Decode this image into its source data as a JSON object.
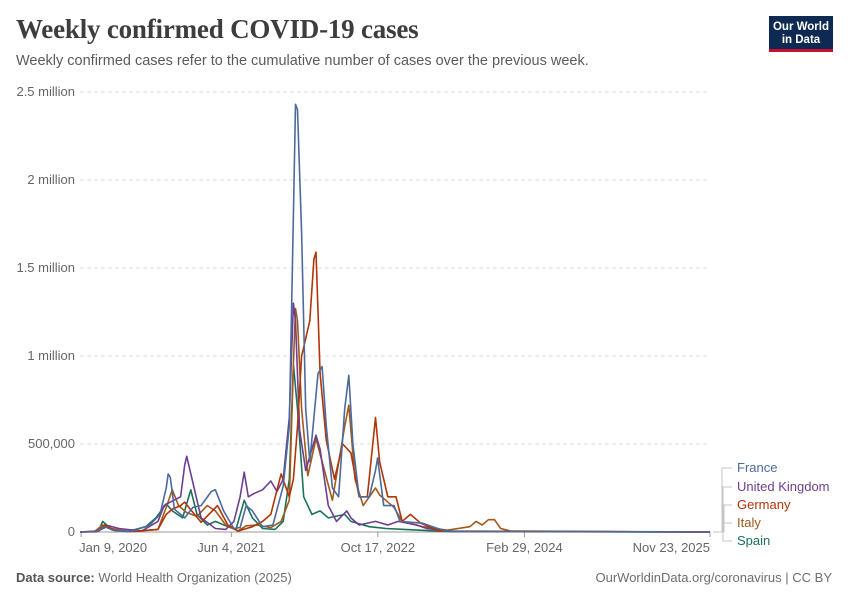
{
  "header": {
    "title": "Weekly confirmed COVID-19 cases",
    "subtitle": "Weekly confirmed cases refer to the cumulative number of cases over the previous week.",
    "logo_line1": "Our World",
    "logo_line2": "in Data"
  },
  "footer": {
    "source_label": "Data source:",
    "source_text": "World Health Organization (2025)",
    "link_text": "OurWorldinData.org/coronavirus | CC BY"
  },
  "chart_data": {
    "type": "line",
    "title": "Weekly confirmed COVID-19 cases",
    "xlabel": "",
    "ylabel": "",
    "xlim": [
      "2020-01-05",
      "2025-11-23"
    ],
    "ylim": [
      0,
      2500000
    ],
    "y_ticks": [
      0,
      500000,
      1000000,
      1500000,
      2000000,
      2500000
    ],
    "y_tick_labels": [
      "0",
      "500,000",
      "1 million",
      "1.5 million",
      "2 million",
      "2.5 million"
    ],
    "x_ticks": [
      "2020-01-09",
      "2021-06-04",
      "2022-10-17",
      "2024-02-29",
      "2025-11-23"
    ],
    "x_tick_labels": [
      "Jan 9, 2020",
      "Jun 4, 2021",
      "Oct 17, 2022",
      "Feb 29, 2024",
      "Nov 23, 2025"
    ],
    "grid": "horizontal dashed",
    "legend_position": "right",
    "series": [
      {
        "name": "France",
        "color": "#4c6a9c",
        "points": [
          [
            "2020-01-05",
            0
          ],
          [
            "2020-03-01",
            2000
          ],
          [
            "2020-03-29",
            30000
          ],
          [
            "2020-04-26",
            10000
          ],
          [
            "2020-06-28",
            3000
          ],
          [
            "2020-08-30",
            40000
          ],
          [
            "2020-10-04",
            100000
          ],
          [
            "2020-10-25",
            250000
          ],
          [
            "2020-11-01",
            330000
          ],
          [
            "2020-11-08",
            310000
          ],
          [
            "2020-11-22",
            130000
          ],
          [
            "2020-12-27",
            80000
          ],
          [
            "2021-01-24",
            140000
          ],
          [
            "2021-02-21",
            150000
          ],
          [
            "2021-03-28",
            230000
          ],
          [
            "2021-04-11",
            240000
          ],
          [
            "2021-05-09",
            120000
          ],
          [
            "2021-06-13",
            20000
          ],
          [
            "2021-07-04",
            25000
          ],
          [
            "2021-07-25",
            150000
          ],
          [
            "2021-08-15",
            120000
          ],
          [
            "2021-09-19",
            30000
          ],
          [
            "2021-10-24",
            40000
          ],
          [
            "2021-11-28",
            260000
          ],
          [
            "2021-12-19",
            600000
          ],
          [
            "2022-01-02",
            1800000
          ],
          [
            "2022-01-09",
            2430000
          ],
          [
            "2022-01-16",
            2400000
          ],
          [
            "2022-01-30",
            1700000
          ],
          [
            "2022-02-13",
            700000
          ],
          [
            "2022-02-27",
            400000
          ],
          [
            "2022-03-27",
            900000
          ],
          [
            "2022-04-10",
            940000
          ],
          [
            "2022-04-24",
            600000
          ],
          [
            "2022-05-15",
            250000
          ],
          [
            "2022-06-05",
            200000
          ],
          [
            "2022-06-26",
            700000
          ],
          [
            "2022-07-10",
            890000
          ],
          [
            "2022-07-24",
            500000
          ],
          [
            "2022-08-14",
            200000
          ],
          [
            "2022-09-18",
            200000
          ],
          [
            "2022-10-09",
            350000
          ],
          [
            "2022-10-16",
            420000
          ],
          [
            "2022-11-06",
            150000
          ],
          [
            "2022-12-11",
            150000
          ],
          [
            "2023-01-01",
            60000
          ],
          [
            "2023-03-19",
            50000
          ],
          [
            "2023-06-04",
            5000
          ],
          [
            "2023-08-20",
            3000
          ],
          [
            "2025-11-23",
            0
          ]
        ]
      },
      {
        "name": "United Kingdom",
        "color": "#6d3e91",
        "points": [
          [
            "2020-01-05",
            0
          ],
          [
            "2020-03-01",
            1000
          ],
          [
            "2020-04-12",
            35000
          ],
          [
            "2020-05-17",
            20000
          ],
          [
            "2020-08-02",
            5000
          ],
          [
            "2020-09-27",
            60000
          ],
          [
            "2020-10-18",
            150000
          ],
          [
            "2020-11-08",
            170000
          ],
          [
            "2020-12-13",
            200000
          ],
          [
            "2020-12-27",
            380000
          ],
          [
            "2021-01-03",
            430000
          ],
          [
            "2021-01-24",
            280000
          ],
          [
            "2021-02-21",
            80000
          ],
          [
            "2021-04-11",
            20000
          ],
          [
            "2021-05-16",
            15000
          ],
          [
            "2021-06-13",
            60000
          ],
          [
            "2021-07-04",
            200000
          ],
          [
            "2021-07-18",
            340000
          ],
          [
            "2021-08-01",
            200000
          ],
          [
            "2021-08-22",
            220000
          ],
          [
            "2021-09-19",
            240000
          ],
          [
            "2021-10-17",
            290000
          ],
          [
            "2021-11-07",
            230000
          ],
          [
            "2021-11-28",
            300000
          ],
          [
            "2021-12-19",
            650000
          ],
          [
            "2022-01-02",
            1300000
          ],
          [
            "2022-01-09",
            1200000
          ],
          [
            "2022-01-23",
            580000
          ],
          [
            "2022-02-13",
            350000
          ],
          [
            "2022-03-20",
            550000
          ],
          [
            "2022-04-03",
            470000
          ],
          [
            "2022-05-01",
            150000
          ],
          [
            "2022-05-29",
            60000
          ],
          [
            "2022-07-03",
            120000
          ],
          [
            "2022-07-17",
            80000
          ],
          [
            "2022-08-14",
            40000
          ],
          [
            "2022-10-09",
            60000
          ],
          [
            "2022-11-20",
            40000
          ],
          [
            "2022-12-25",
            60000
          ],
          [
            "2023-02-26",
            40000
          ],
          [
            "2023-04-02",
            20000
          ],
          [
            "2023-06-25",
            3000
          ],
          [
            "2024-03-03",
            2000
          ],
          [
            "2025-11-23",
            0
          ]
        ]
      },
      {
        "name": "Germany",
        "color": "#b13507",
        "points": [
          [
            "2020-01-05",
            0
          ],
          [
            "2020-03-08",
            5000
          ],
          [
            "2020-03-29",
            40000
          ],
          [
            "2020-05-03",
            8000
          ],
          [
            "2020-07-05",
            3000
          ],
          [
            "2020-09-27",
            15000
          ],
          [
            "2020-10-25",
            100000
          ],
          [
            "2020-11-15",
            130000
          ],
          [
            "2020-12-13",
            150000
          ],
          [
            "2020-12-27",
            170000
          ],
          [
            "2021-01-10",
            140000
          ],
          [
            "2021-02-21",
            55000
          ],
          [
            "2021-04-18",
            150000
          ],
          [
            "2021-05-23",
            40000
          ],
          [
            "2021-06-27",
            5000
          ],
          [
            "2021-08-15",
            30000
          ],
          [
            "2021-09-19",
            60000
          ],
          [
            "2021-10-17",
            100000
          ],
          [
            "2021-11-21",
            330000
          ],
          [
            "2021-12-19",
            200000
          ],
          [
            "2022-01-02",
            300000
          ],
          [
            "2022-01-16",
            600000
          ],
          [
            "2022-01-30",
            1000000
          ],
          [
            "2022-02-06",
            1050000
          ],
          [
            "2022-02-27",
            1200000
          ],
          [
            "2022-03-13",
            1550000
          ],
          [
            "2022-03-20",
            1590000
          ],
          [
            "2022-04-03",
            900000
          ],
          [
            "2022-04-24",
            520000
          ],
          [
            "2022-05-22",
            300000
          ],
          [
            "2022-06-19",
            500000
          ],
          [
            "2022-07-17",
            450000
          ],
          [
            "2022-08-14",
            200000
          ],
          [
            "2022-09-11",
            200000
          ],
          [
            "2022-10-02",
            540000
          ],
          [
            "2022-10-09",
            650000
          ],
          [
            "2022-10-23",
            400000
          ],
          [
            "2022-11-20",
            200000
          ],
          [
            "2022-12-18",
            200000
          ],
          [
            "2023-01-08",
            60000
          ],
          [
            "2023-02-05",
            100000
          ],
          [
            "2023-03-12",
            50000
          ],
          [
            "2023-05-14",
            5000
          ],
          [
            "2025-11-23",
            0
          ]
        ]
      },
      {
        "name": "Italy",
        "color": "#a2591b",
        "points": [
          [
            "2020-01-05",
            0
          ],
          [
            "2020-02-23",
            2000
          ],
          [
            "2020-03-22",
            40000
          ],
          [
            "2020-04-19",
            20000
          ],
          [
            "2020-06-21",
            2000
          ],
          [
            "2020-09-27",
            15000
          ],
          [
            "2020-10-25",
            140000
          ],
          [
            "2020-11-15",
            240000
          ],
          [
            "2020-12-06",
            150000
          ],
          [
            "2021-01-03",
            110000
          ],
          [
            "2021-02-07",
            90000
          ],
          [
            "2021-03-14",
            150000
          ],
          [
            "2021-04-11",
            120000
          ],
          [
            "2021-05-16",
            40000
          ],
          [
            "2021-06-27",
            6000
          ],
          [
            "2021-07-25",
            35000
          ],
          [
            "2021-08-29",
            40000
          ],
          [
            "2021-10-17",
            25000
          ],
          [
            "2021-11-21",
            60000
          ],
          [
            "2021-12-19",
            180000
          ],
          [
            "2022-01-02",
            950000
          ],
          [
            "2022-01-09",
            1270000
          ],
          [
            "2022-01-16",
            1200000
          ],
          [
            "2022-01-30",
            700000
          ],
          [
            "2022-02-20",
            320000
          ],
          [
            "2022-03-20",
            530000
          ],
          [
            "2022-04-10",
            400000
          ],
          [
            "2022-05-15",
            180000
          ],
          [
            "2022-06-26",
            600000
          ],
          [
            "2022-07-10",
            720000
          ],
          [
            "2022-07-31",
            300000
          ],
          [
            "2022-08-28",
            150000
          ],
          [
            "2022-10-09",
            250000
          ],
          [
            "2022-10-23",
            210000
          ],
          [
            "2022-11-13",
            180000
          ],
          [
            "2022-12-11",
            140000
          ],
          [
            "2023-01-08",
            60000
          ],
          [
            "2023-03-19",
            30000
          ],
          [
            "2023-06-11",
            10000
          ],
          [
            "2023-08-27",
            30000
          ],
          [
            "2023-09-17",
            60000
          ],
          [
            "2023-10-08",
            40000
          ],
          [
            "2023-10-29",
            70000
          ],
          [
            "2023-11-19",
            70000
          ],
          [
            "2023-12-10",
            20000
          ],
          [
            "2024-01-14",
            5000
          ],
          [
            "2025-11-23",
            0
          ]
        ]
      },
      {
        "name": "Spain",
        "color": "#1a7359",
        "points": [
          [
            "2020-01-05",
            0
          ],
          [
            "2020-03-08",
            5000
          ],
          [
            "2020-03-22",
            60000
          ],
          [
            "2020-04-19",
            20000
          ],
          [
            "2020-06-14",
            2000
          ],
          [
            "2020-08-16",
            30000
          ],
          [
            "2020-09-20",
            80000
          ],
          [
            "2020-10-25",
            160000
          ],
          [
            "2020-11-15",
            120000
          ],
          [
            "2020-12-20",
            80000
          ],
          [
            "2021-01-17",
            240000
          ],
          [
            "2021-02-07",
            100000
          ],
          [
            "2021-03-14",
            40000
          ],
          [
            "2021-04-11",
            60000
          ],
          [
            "2021-05-23",
            30000
          ],
          [
            "2021-06-20",
            15000
          ],
          [
            "2021-07-18",
            180000
          ],
          [
            "2021-08-15",
            80000
          ],
          [
            "2021-09-19",
            20000
          ],
          [
            "2021-10-31",
            15000
          ],
          [
            "2021-11-28",
            60000
          ],
          [
            "2021-12-19",
            300000
          ],
          [
            "2022-01-02",
            950000
          ],
          [
            "2022-01-16",
            700000
          ],
          [
            "2022-02-06",
            200000
          ],
          [
            "2022-03-06",
            100000
          ],
          [
            "2022-04-03",
            120000
          ],
          [
            "2022-05-01",
            80000
          ],
          [
            "2022-06-26",
            100000
          ],
          [
            "2022-07-17",
            60000
          ],
          [
            "2022-09-18",
            30000
          ],
          [
            "2022-11-13",
            20000
          ],
          [
            "2023-01-15",
            15000
          ],
          [
            "2023-06-18",
            2000
          ],
          [
            "2025-11-23",
            0
          ]
        ]
      }
    ]
  }
}
